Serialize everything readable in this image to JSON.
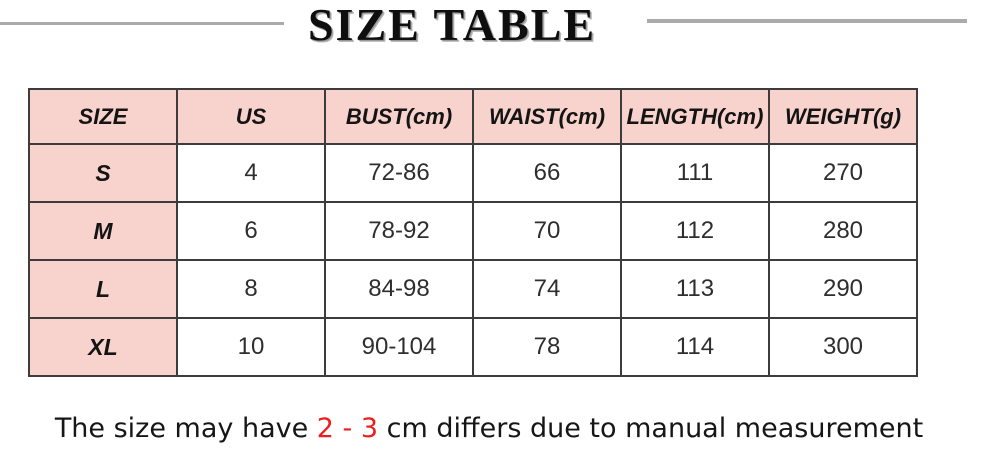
{
  "title": "SIZE TABLE",
  "table": {
    "headers": [
      "SIZE",
      "US",
      "BUST(cm)",
      "WAIST(cm)",
      "LENGTH(cm)",
      "WEIGHT(g)"
    ],
    "rows": [
      [
        "S",
        "4",
        "72-86",
        "66",
        "111",
        "270"
      ],
      [
        "M",
        "6",
        "78-92",
        "70",
        "112",
        "280"
      ],
      [
        "L",
        "8",
        "84-98",
        "74",
        "113",
        "290"
      ],
      [
        "XL",
        "10",
        "90-104",
        "78",
        "114",
        "300"
      ]
    ]
  },
  "note": {
    "prefix": "The size may have ",
    "highlight": "2 - 3",
    "suffix": " cm differs due to manual measurement"
  },
  "colors": {
    "header_bg": "#f8d3cd",
    "border": "#3c3c3c",
    "rule_gray": "#ababab",
    "highlight_red": "#ee1d1d"
  },
  "chart_data": {
    "type": "table",
    "title": "SIZE TABLE",
    "columns": [
      "SIZE",
      "US",
      "BUST(cm)",
      "WAIST(cm)",
      "LENGTH(cm)",
      "WEIGHT(g)"
    ],
    "rows": [
      {
        "SIZE": "S",
        "US": 4,
        "BUST_cm": "72-86",
        "WAIST_cm": 66,
        "LENGTH_cm": 111,
        "WEIGHT_g": 270
      },
      {
        "SIZE": "M",
        "US": 6,
        "BUST_cm": "78-92",
        "WAIST_cm": 70,
        "LENGTH_cm": 112,
        "WEIGHT_g": 280
      },
      {
        "SIZE": "L",
        "US": 8,
        "BUST_cm": "84-98",
        "WAIST_cm": 74,
        "LENGTH_cm": 113,
        "WEIGHT_g": 290
      },
      {
        "SIZE": "XL",
        "US": 10,
        "BUST_cm": "90-104",
        "WAIST_cm": 78,
        "LENGTH_cm": 114,
        "WEIGHT_g": 300
      }
    ],
    "footnote": "The size may have 2 - 3 cm differs due to manual measurement"
  }
}
